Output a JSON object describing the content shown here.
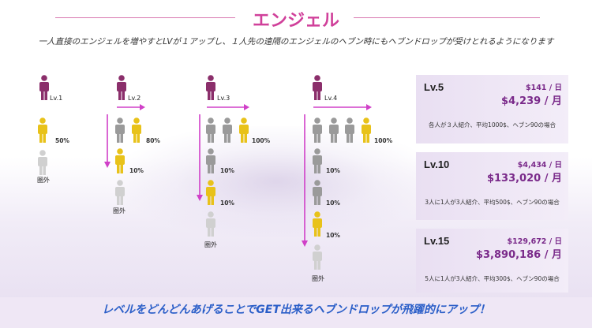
{
  "header": {
    "title": "エンジェル",
    "subtitle": "一人直接のエンジェルを増やすとLVが１アップし、１人先の遠隔のエンジェルのヘブン時にもヘブンドロップが受けとれるようになります"
  },
  "colors": {
    "accent": "#d0409a",
    "maroon": "#8b2f6b",
    "gold": "#e8c21a",
    "gray": "#9a9a9a",
    "lightgray": "#d0d0d0",
    "arrow": "#d040c8",
    "footer": "#2a5ec8"
  },
  "levels": [
    {
      "label": "Lv.1",
      "pcts": [
        "50%"
      ],
      "outside": "圏外"
    },
    {
      "label": "Lv.2",
      "pcts": [
        "80%",
        "10%"
      ],
      "outside": "圏外"
    },
    {
      "label": "Lv.3",
      "pcts": [
        "100%",
        "10%",
        "10%"
      ],
      "outside": "圏外"
    },
    {
      "label": "Lv.4",
      "pcts": [
        "100%",
        "10%",
        "10%",
        "10%"
      ],
      "outside": "圏外"
    }
  ],
  "cards": [
    {
      "level": "Lv.5",
      "day": "$141 / 日",
      "month": "$4,239 / 月",
      "note": "各人が３人紹介、平均1000$、ヘブン90の場合"
    },
    {
      "level": "Lv.10",
      "day": "$4,434 / 日",
      "month": "$133,020 / 月",
      "note": "3人に1人が3人紹介、平均500$、ヘブン90の場合"
    },
    {
      "level": "Lv.15",
      "day": "$129,672 / 日",
      "month": "$3,890,186 / 月",
      "note": "5人に1人が3人紹介、平均300$、ヘブン90の場合"
    }
  ],
  "footer": {
    "text": "レベルをどんどんあげることでGET出来るヘブンドロップが飛躍的にアップ！"
  }
}
